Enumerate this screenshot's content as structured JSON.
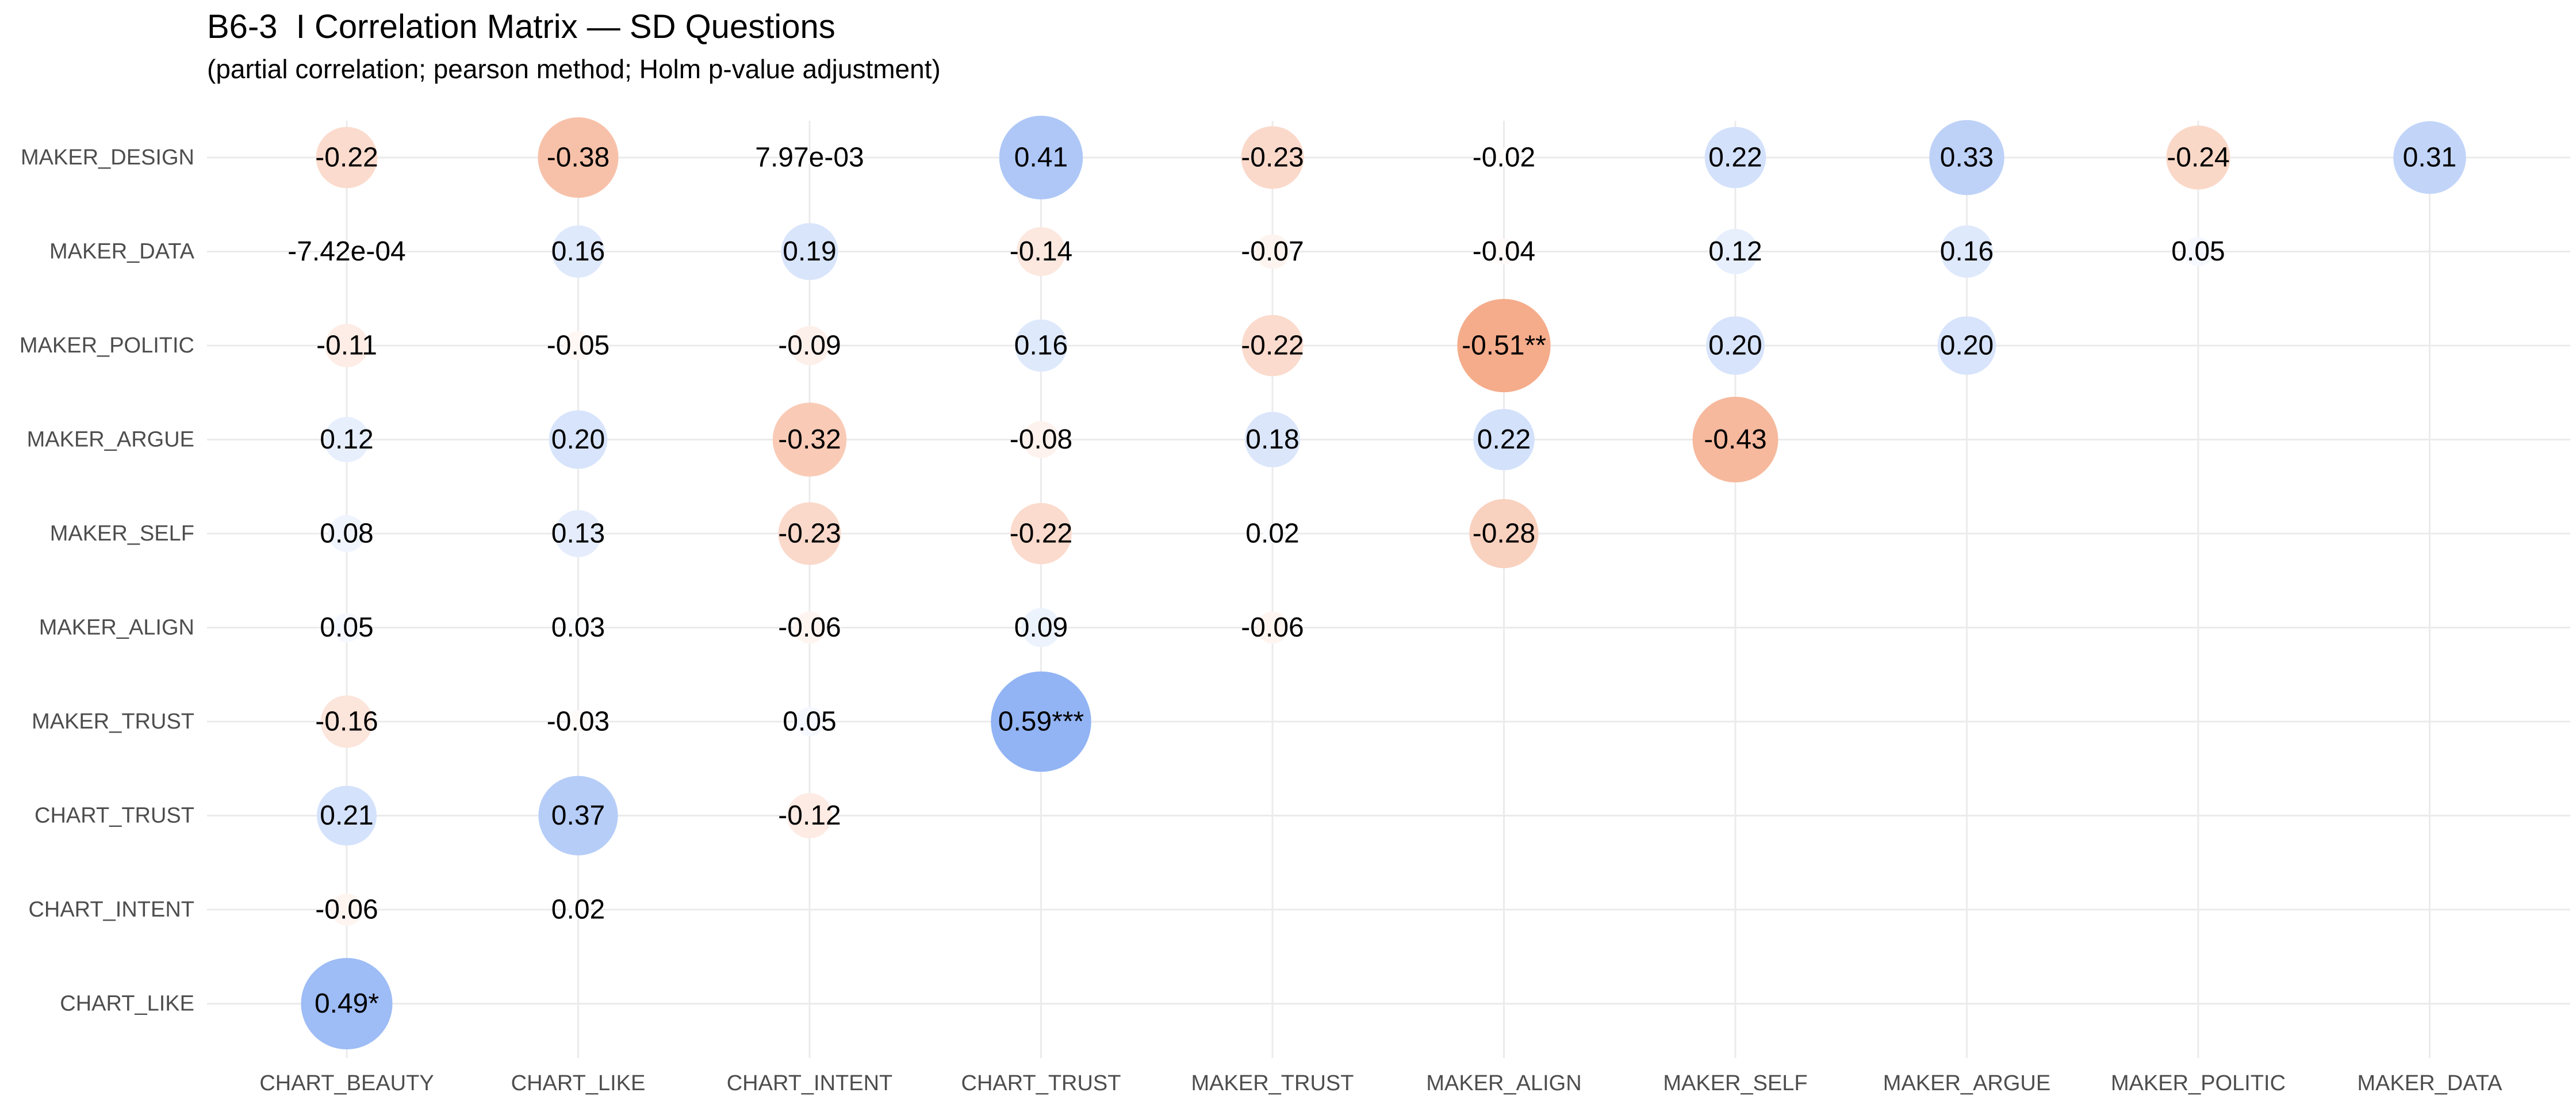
{
  "chart_data": {
    "type": "correlation-matrix",
    "title": "B6-3  I Correlation Matrix — SD Questions",
    "subtitle": "(partial correlation; pearson method; Holm p-value adjustment)",
    "x_categories": [
      "CHART_BEAUTY",
      "CHART_LIKE",
      "CHART_INTENT",
      "CHART_TRUST",
      "MAKER_TRUST",
      "MAKER_ALIGN",
      "MAKER_SELF",
      "MAKER_ARGUE",
      "MAKER_POLITIC",
      "MAKER_DATA"
    ],
    "y_categories": [
      "MAKER_DESIGN",
      "MAKER_DATA",
      "MAKER_POLITIC",
      "MAKER_ARGUE",
      "MAKER_SELF",
      "MAKER_ALIGN",
      "MAKER_TRUST",
      "CHART_TRUST",
      "CHART_INTENT",
      "CHART_LIKE"
    ],
    "color_scale": {
      "negative": "#f4a582",
      "positive": "#92b4f4",
      "neutral": "#ffffff"
    },
    "grid": true,
    "cells": [
      {
        "x": "CHART_BEAUTY",
        "y": "MAKER_DESIGN",
        "value": -0.22,
        "label": "-0.22"
      },
      {
        "x": "CHART_LIKE",
        "y": "MAKER_DESIGN",
        "value": -0.38,
        "label": "-0.38"
      },
      {
        "x": "CHART_INTENT",
        "y": "MAKER_DESIGN",
        "value": 0.00797,
        "label": "7.97e-03"
      },
      {
        "x": "CHART_TRUST",
        "y": "MAKER_DESIGN",
        "value": 0.41,
        "label": "0.41"
      },
      {
        "x": "MAKER_TRUST",
        "y": "MAKER_DESIGN",
        "value": -0.23,
        "label": "-0.23"
      },
      {
        "x": "MAKER_ALIGN",
        "y": "MAKER_DESIGN",
        "value": -0.02,
        "label": "-0.02"
      },
      {
        "x": "MAKER_SELF",
        "y": "MAKER_DESIGN",
        "value": 0.22,
        "label": "0.22"
      },
      {
        "x": "MAKER_ARGUE",
        "y": "MAKER_DESIGN",
        "value": 0.33,
        "label": "0.33"
      },
      {
        "x": "MAKER_POLITIC",
        "y": "MAKER_DESIGN",
        "value": -0.24,
        "label": "-0.24"
      },
      {
        "x": "MAKER_DATA",
        "y": "MAKER_DESIGN",
        "value": 0.31,
        "label": "0.31"
      },
      {
        "x": "CHART_BEAUTY",
        "y": "MAKER_DATA",
        "value": -0.000742,
        "label": "-7.42e-04"
      },
      {
        "x": "CHART_LIKE",
        "y": "MAKER_DATA",
        "value": 0.16,
        "label": "0.16"
      },
      {
        "x": "CHART_INTENT",
        "y": "MAKER_DATA",
        "value": 0.19,
        "label": "0.19"
      },
      {
        "x": "CHART_TRUST",
        "y": "MAKER_DATA",
        "value": -0.14,
        "label": "-0.14"
      },
      {
        "x": "MAKER_TRUST",
        "y": "MAKER_DATA",
        "value": -0.07,
        "label": "-0.07"
      },
      {
        "x": "MAKER_ALIGN",
        "y": "MAKER_DATA",
        "value": -0.04,
        "label": "-0.04"
      },
      {
        "x": "MAKER_SELF",
        "y": "MAKER_DATA",
        "value": 0.12,
        "label": "0.12"
      },
      {
        "x": "MAKER_ARGUE",
        "y": "MAKER_DATA",
        "value": 0.16,
        "label": "0.16"
      },
      {
        "x": "MAKER_POLITIC",
        "y": "MAKER_DATA",
        "value": 0.05,
        "label": "0.05"
      },
      {
        "x": "CHART_BEAUTY",
        "y": "MAKER_POLITIC",
        "value": -0.11,
        "label": "-0.11"
      },
      {
        "x": "CHART_LIKE",
        "y": "MAKER_POLITIC",
        "value": -0.05,
        "label": "-0.05"
      },
      {
        "x": "CHART_INTENT",
        "y": "MAKER_POLITIC",
        "value": -0.09,
        "label": "-0.09"
      },
      {
        "x": "CHART_TRUST",
        "y": "MAKER_POLITIC",
        "value": 0.16,
        "label": "0.16"
      },
      {
        "x": "MAKER_TRUST",
        "y": "MAKER_POLITIC",
        "value": -0.22,
        "label": "-0.22"
      },
      {
        "x": "MAKER_ALIGN",
        "y": "MAKER_POLITIC",
        "value": -0.51,
        "label": "-0.51**"
      },
      {
        "x": "MAKER_SELF",
        "y": "MAKER_POLITIC",
        "value": 0.2,
        "label": "0.20"
      },
      {
        "x": "MAKER_ARGUE",
        "y": "MAKER_POLITIC",
        "value": 0.2,
        "label": "0.20"
      },
      {
        "x": "CHART_BEAUTY",
        "y": "MAKER_ARGUE",
        "value": 0.12,
        "label": "0.12"
      },
      {
        "x": "CHART_LIKE",
        "y": "MAKER_ARGUE",
        "value": 0.2,
        "label": "0.20"
      },
      {
        "x": "CHART_INTENT",
        "y": "MAKER_ARGUE",
        "value": -0.32,
        "label": "-0.32"
      },
      {
        "x": "CHART_TRUST",
        "y": "MAKER_ARGUE",
        "value": -0.08,
        "label": "-0.08"
      },
      {
        "x": "MAKER_TRUST",
        "y": "MAKER_ARGUE",
        "value": 0.18,
        "label": "0.18"
      },
      {
        "x": "MAKER_ALIGN",
        "y": "MAKER_ARGUE",
        "value": 0.22,
        "label": "0.22"
      },
      {
        "x": "MAKER_SELF",
        "y": "MAKER_ARGUE",
        "value": -0.43,
        "label": "-0.43"
      },
      {
        "x": "CHART_BEAUTY",
        "y": "MAKER_SELF",
        "value": 0.08,
        "label": "0.08"
      },
      {
        "x": "CHART_LIKE",
        "y": "MAKER_SELF",
        "value": 0.13,
        "label": "0.13"
      },
      {
        "x": "CHART_INTENT",
        "y": "MAKER_SELF",
        "value": -0.23,
        "label": "-0.23"
      },
      {
        "x": "CHART_TRUST",
        "y": "MAKER_SELF",
        "value": -0.22,
        "label": "-0.22"
      },
      {
        "x": "MAKER_TRUST",
        "y": "MAKER_SELF",
        "value": 0.02,
        "label": "0.02"
      },
      {
        "x": "MAKER_ALIGN",
        "y": "MAKER_SELF",
        "value": -0.28,
        "label": "-0.28"
      },
      {
        "x": "CHART_BEAUTY",
        "y": "MAKER_ALIGN",
        "value": 0.05,
        "label": "0.05"
      },
      {
        "x": "CHART_LIKE",
        "y": "MAKER_ALIGN",
        "value": 0.03,
        "label": "0.03"
      },
      {
        "x": "CHART_INTENT",
        "y": "MAKER_ALIGN",
        "value": -0.06,
        "label": "-0.06"
      },
      {
        "x": "CHART_TRUST",
        "y": "MAKER_ALIGN",
        "value": 0.09,
        "label": "0.09"
      },
      {
        "x": "MAKER_TRUST",
        "y": "MAKER_ALIGN",
        "value": -0.06,
        "label": "-0.06"
      },
      {
        "x": "CHART_BEAUTY",
        "y": "MAKER_TRUST",
        "value": -0.16,
        "label": "-0.16"
      },
      {
        "x": "CHART_LIKE",
        "y": "MAKER_TRUST",
        "value": -0.03,
        "label": "-0.03"
      },
      {
        "x": "CHART_INTENT",
        "y": "MAKER_TRUST",
        "value": 0.05,
        "label": "0.05"
      },
      {
        "x": "CHART_TRUST",
        "y": "MAKER_TRUST",
        "value": 0.59,
        "label": "0.59***"
      },
      {
        "x": "CHART_BEAUTY",
        "y": "CHART_TRUST",
        "value": 0.21,
        "label": "0.21"
      },
      {
        "x": "CHART_LIKE",
        "y": "CHART_TRUST",
        "value": 0.37,
        "label": "0.37"
      },
      {
        "x": "CHART_INTENT",
        "y": "CHART_TRUST",
        "value": -0.12,
        "label": "-0.12"
      },
      {
        "x": "CHART_BEAUTY",
        "y": "CHART_INTENT",
        "value": -0.06,
        "label": "-0.06"
      },
      {
        "x": "CHART_LIKE",
        "y": "CHART_INTENT",
        "value": 0.02,
        "label": "0.02"
      },
      {
        "x": "CHART_BEAUTY",
        "y": "CHART_LIKE",
        "value": 0.49,
        "label": "0.49*"
      }
    ]
  }
}
